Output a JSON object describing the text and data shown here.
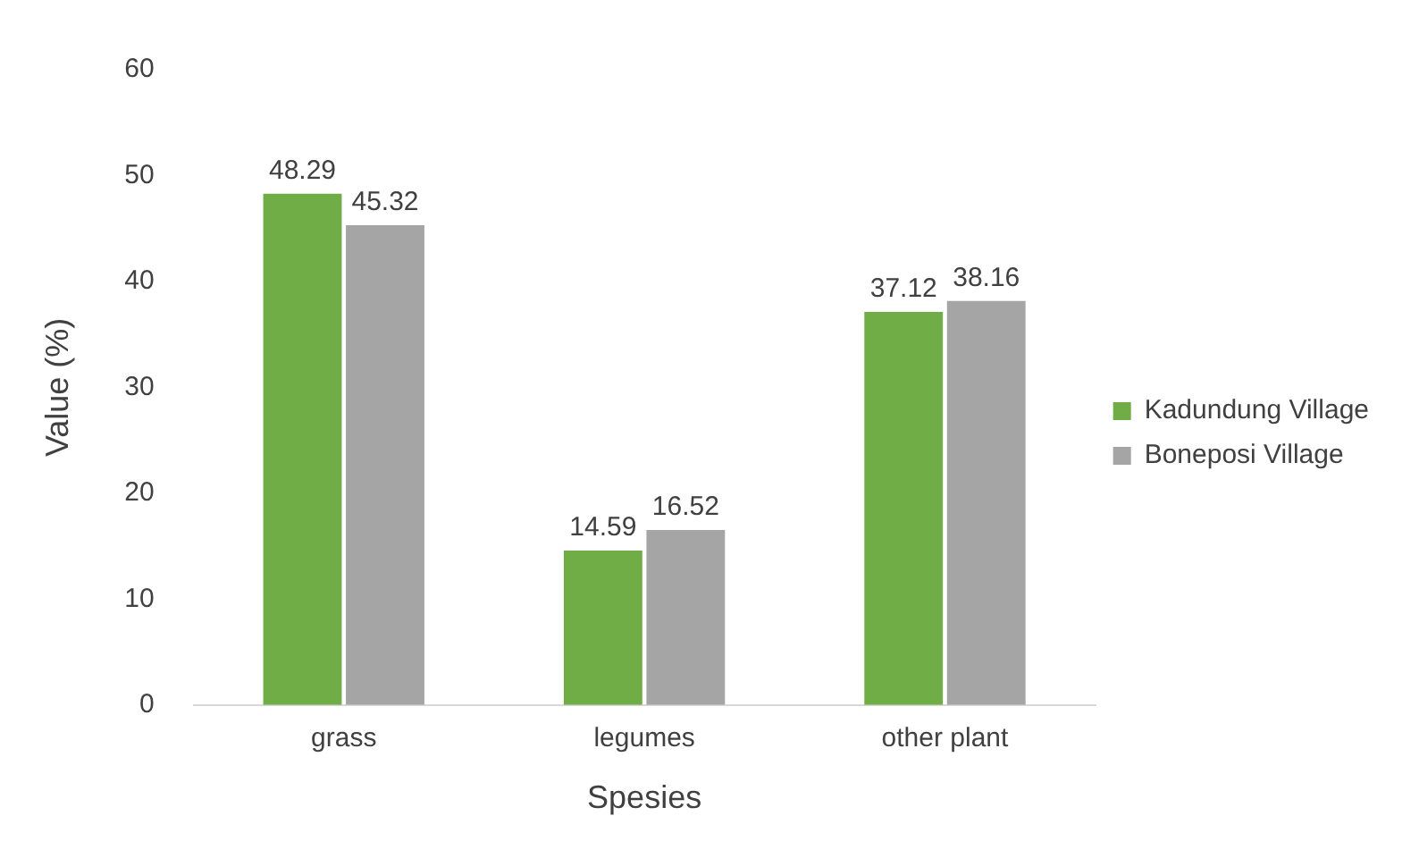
{
  "chart_data": {
    "type": "bar",
    "xlabel": "Spesies",
    "ylabel": "Value (%)",
    "categories": [
      "grass",
      "legumes",
      "other plant"
    ],
    "series": [
      {
        "name": "Kadundung Village",
        "color": "#70ad47",
        "values": [
          48.29,
          14.59,
          37.12
        ]
      },
      {
        "name": "Boneposi Village",
        "color": "#a5a5a5",
        "values": [
          45.32,
          16.52,
          38.16
        ]
      }
    ],
    "ylim": [
      0,
      60
    ],
    "yticks": [
      0,
      10,
      20,
      30,
      40,
      50,
      60
    ],
    "grid": false,
    "legend": "right",
    "data_labels": true
  }
}
